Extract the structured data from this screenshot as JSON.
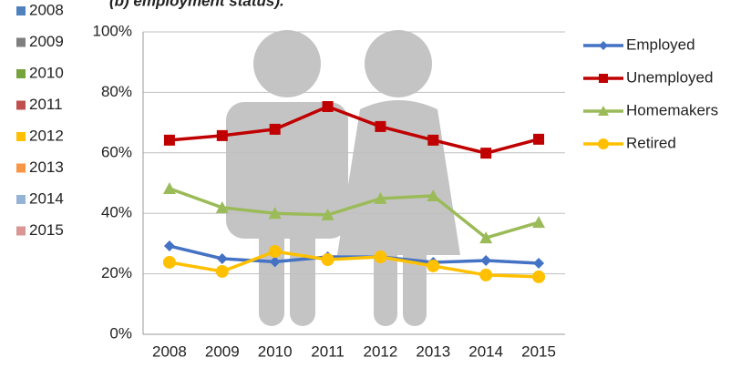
{
  "chart_data": {
    "type": "line",
    "title": "(b) employment status).",
    "year_legend": [
      {
        "label": "2008",
        "color": "#4f81bd"
      },
      {
        "label": "2009",
        "color": "#7f7f7f"
      },
      {
        "label": "2010",
        "color": "#77a33c"
      },
      {
        "label": "2011",
        "color": "#c0504d"
      },
      {
        "label": "2012",
        "color": "#ffc000"
      },
      {
        "label": "2013",
        "color": "#f79646"
      },
      {
        "label": "2014",
        "color": "#95b3d7"
      },
      {
        "label": "2015",
        "color": "#d99694"
      }
    ],
    "categories": [
      "2008",
      "2009",
      "2010",
      "2011",
      "2012",
      "2013",
      "2014",
      "2015"
    ],
    "series": [
      {
        "name": "Employed",
        "color": "#4472c4",
        "marker": "diamond",
        "values": [
          29.2,
          25,
          24,
          25.6,
          25.6,
          23.8,
          24.4,
          23.5
        ]
      },
      {
        "name": "Unemployed",
        "color": "#c00000",
        "marker": "square",
        "values": [
          64.2,
          65.7,
          67.8,
          75.3,
          68.7,
          64.2,
          59.9,
          64.5
        ]
      },
      {
        "name": "Homemakers",
        "color": "#9bbb59",
        "marker": "triangle",
        "values": [
          48.2,
          41.9,
          40,
          39.5,
          44.9,
          45.8,
          31.9,
          37
        ]
      },
      {
        "name": "Retired",
        "color": "#ffc000",
        "marker": "circle",
        "values": [
          23.8,
          20.8,
          27.4,
          24.7,
          25.6,
          22.6,
          19.6,
          19
        ]
      }
    ],
    "ylim": [
      0,
      100
    ],
    "yticks": [
      {
        "value": 0,
        "label": "0%"
      },
      {
        "value": 20,
        "label": "20%"
      },
      {
        "value": 40,
        "label": "40%"
      },
      {
        "value": 60,
        "label": "60%"
      },
      {
        "value": 80,
        "label": "80%"
      },
      {
        "value": 100,
        "label": "100%"
      }
    ],
    "grid": true,
    "legend": "right"
  }
}
